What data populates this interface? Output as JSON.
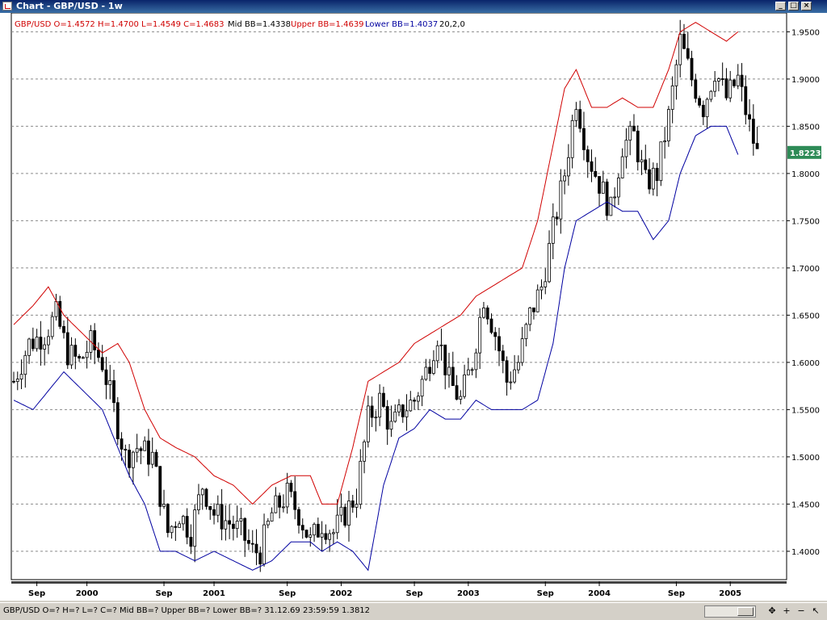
{
  "window": {
    "title": "Chart - GBP/USD - 1w",
    "min_label": "_",
    "max_label": "□",
    "close_label": "×"
  },
  "header": {
    "ohlc": "GBP/USD O=1.4572 H=1.4700 L=1.4549 C=1.4683",
    "mid": "Mid BB=1.4338",
    "upper": "Upper BB=1.4639",
    "lower": "Lower BB=1.4037",
    "params": "20,2,0"
  },
  "status": {
    "text": "GBP/USD O=? H=? L=? C=?  Mid BB=? Upper BB=? Lower BB=?  31.12.69 23:59:59 1.3812",
    "buttons": [
      "✥",
      "+",
      "−",
      "↖"
    ]
  },
  "colors": {
    "upper_band": "#d00000",
    "lower_band": "#0000a0",
    "price": "#000000",
    "grid": "#8a8a8a",
    "last_price_bg": "#2e8b57"
  },
  "chart_data": {
    "type": "candlestick",
    "series_note": "GBP/USD weekly with Bollinger Bands (20,2,0)",
    "ylim": [
      1.37,
      1.97
    ],
    "y_ticks": [
      "1.9500",
      "1.9000",
      "1.8500",
      "1.8000",
      "1.7500",
      "1.7000",
      "1.6500",
      "1.6000",
      "1.5500",
      "1.5000",
      "1.4500",
      "1.4000"
    ],
    "x_labels": [
      "Sep",
      "2000",
      "Sep",
      "2001",
      "Sep",
      "2002",
      "Sep",
      "2003",
      "Sep",
      "2004",
      "Sep",
      "2005"
    ],
    "x_label_weeks": [
      6,
      19,
      39,
      52,
      71,
      85,
      104,
      118,
      138,
      152,
      172,
      186
    ],
    "total_weeks": 200,
    "last_price": "1.8223",
    "close_anchors": [
      [
        0,
        1.58
      ],
      [
        4,
        1.62
      ],
      [
        8,
        1.63
      ],
      [
        11,
        1.65
      ],
      [
        14,
        1.61
      ],
      [
        17,
        1.6
      ],
      [
        20,
        1.62
      ],
      [
        23,
        1.6
      ],
      [
        26,
        1.55
      ],
      [
        29,
        1.5
      ],
      [
        32,
        1.51
      ],
      [
        36,
        1.5
      ],
      [
        40,
        1.42
      ],
      [
        43,
        1.44
      ],
      [
        46,
        1.42
      ],
      [
        49,
        1.47
      ],
      [
        52,
        1.44
      ],
      [
        56,
        1.43
      ],
      [
        59,
        1.42
      ],
      [
        62,
        1.4
      ],
      [
        64,
        1.4
      ],
      [
        67,
        1.44
      ],
      [
        71,
        1.46
      ],
      [
        74,
        1.44
      ],
      [
        77,
        1.41
      ],
      [
        80,
        1.43
      ],
      [
        83,
        1.42
      ],
      [
        86,
        1.44
      ],
      [
        89,
        1.46
      ],
      [
        92,
        1.54
      ],
      [
        95,
        1.56
      ],
      [
        98,
        1.53
      ],
      [
        101,
        1.55
      ],
      [
        104,
        1.56
      ],
      [
        107,
        1.59
      ],
      [
        110,
        1.63
      ],
      [
        113,
        1.58
      ],
      [
        116,
        1.56
      ],
      [
        119,
        1.6
      ],
      [
        122,
        1.67
      ],
      [
        125,
        1.63
      ],
      [
        128,
        1.58
      ],
      [
        131,
        1.6
      ],
      [
        134,
        1.65
      ],
      [
        137,
        1.68
      ],
      [
        140,
        1.74
      ],
      [
        143,
        1.8
      ],
      [
        146,
        1.88
      ],
      [
        149,
        1.82
      ],
      [
        152,
        1.79
      ],
      [
        155,
        1.76
      ],
      [
        158,
        1.83
      ],
      [
        161,
        1.84
      ],
      [
        164,
        1.79
      ],
      [
        167,
        1.8
      ],
      [
        170,
        1.86
      ],
      [
        173,
        1.94
      ],
      [
        176,
        1.9
      ],
      [
        179,
        1.87
      ],
      [
        182,
        1.91
      ],
      [
        185,
        1.88
      ],
      [
        188,
        1.9
      ],
      [
        191,
        1.85
      ],
      [
        193,
        1.82
      ]
    ],
    "upper_band_anchors": [
      [
        0,
        1.64
      ],
      [
        5,
        1.66
      ],
      [
        9,
        1.68
      ],
      [
        13,
        1.65
      ],
      [
        18,
        1.63
      ],
      [
        23,
        1.61
      ],
      [
        27,
        1.62
      ],
      [
        30,
        1.6
      ],
      [
        34,
        1.55
      ],
      [
        38,
        1.52
      ],
      [
        42,
        1.51
      ],
      [
        47,
        1.5
      ],
      [
        52,
        1.48
      ],
      [
        57,
        1.47
      ],
      [
        62,
        1.45
      ],
      [
        67,
        1.47
      ],
      [
        72,
        1.48
      ],
      [
        77,
        1.48
      ],
      [
        80,
        1.45
      ],
      [
        84,
        1.45
      ],
      [
        88,
        1.51
      ],
      [
        92,
        1.58
      ],
      [
        96,
        1.59
      ],
      [
        100,
        1.6
      ],
      [
        104,
        1.62
      ],
      [
        108,
        1.63
      ],
      [
        112,
        1.64
      ],
      [
        116,
        1.65
      ],
      [
        120,
        1.67
      ],
      [
        124,
        1.68
      ],
      [
        128,
        1.69
      ],
      [
        132,
        1.7
      ],
      [
        136,
        1.75
      ],
      [
        140,
        1.83
      ],
      [
        143,
        1.89
      ],
      [
        146,
        1.91
      ],
      [
        150,
        1.87
      ],
      [
        154,
        1.87
      ],
      [
        158,
        1.88
      ],
      [
        162,
        1.87
      ],
      [
        166,
        1.87
      ],
      [
        170,
        1.91
      ],
      [
        173,
        1.95
      ],
      [
        177,
        1.96
      ],
      [
        181,
        1.95
      ],
      [
        185,
        1.94
      ],
      [
        188,
        1.95
      ]
    ],
    "lower_band_anchors": [
      [
        0,
        1.56
      ],
      [
        5,
        1.55
      ],
      [
        9,
        1.57
      ],
      [
        13,
        1.59
      ],
      [
        18,
        1.57
      ],
      [
        23,
        1.55
      ],
      [
        27,
        1.51
      ],
      [
        30,
        1.48
      ],
      [
        34,
        1.45
      ],
      [
        38,
        1.4
      ],
      [
        42,
        1.4
      ],
      [
        47,
        1.39
      ],
      [
        52,
        1.4
      ],
      [
        57,
        1.39
      ],
      [
        62,
        1.38
      ],
      [
        67,
        1.39
      ],
      [
        72,
        1.41
      ],
      [
        77,
        1.41
      ],
      [
        80,
        1.4
      ],
      [
        84,
        1.41
      ],
      [
        88,
        1.4
      ],
      [
        92,
        1.38
      ],
      [
        96,
        1.47
      ],
      [
        100,
        1.52
      ],
      [
        104,
        1.53
      ],
      [
        108,
        1.55
      ],
      [
        112,
        1.54
      ],
      [
        116,
        1.54
      ],
      [
        120,
        1.56
      ],
      [
        124,
        1.55
      ],
      [
        128,
        1.55
      ],
      [
        132,
        1.55
      ],
      [
        136,
        1.56
      ],
      [
        140,
        1.62
      ],
      [
        143,
        1.7
      ],
      [
        146,
        1.75
      ],
      [
        150,
        1.76
      ],
      [
        154,
        1.77
      ],
      [
        158,
        1.76
      ],
      [
        162,
        1.76
      ],
      [
        166,
        1.73
      ],
      [
        170,
        1.75
      ],
      [
        173,
        1.8
      ],
      [
        177,
        1.84
      ],
      [
        181,
        1.85
      ],
      [
        185,
        1.85
      ],
      [
        188,
        1.82
      ]
    ]
  }
}
